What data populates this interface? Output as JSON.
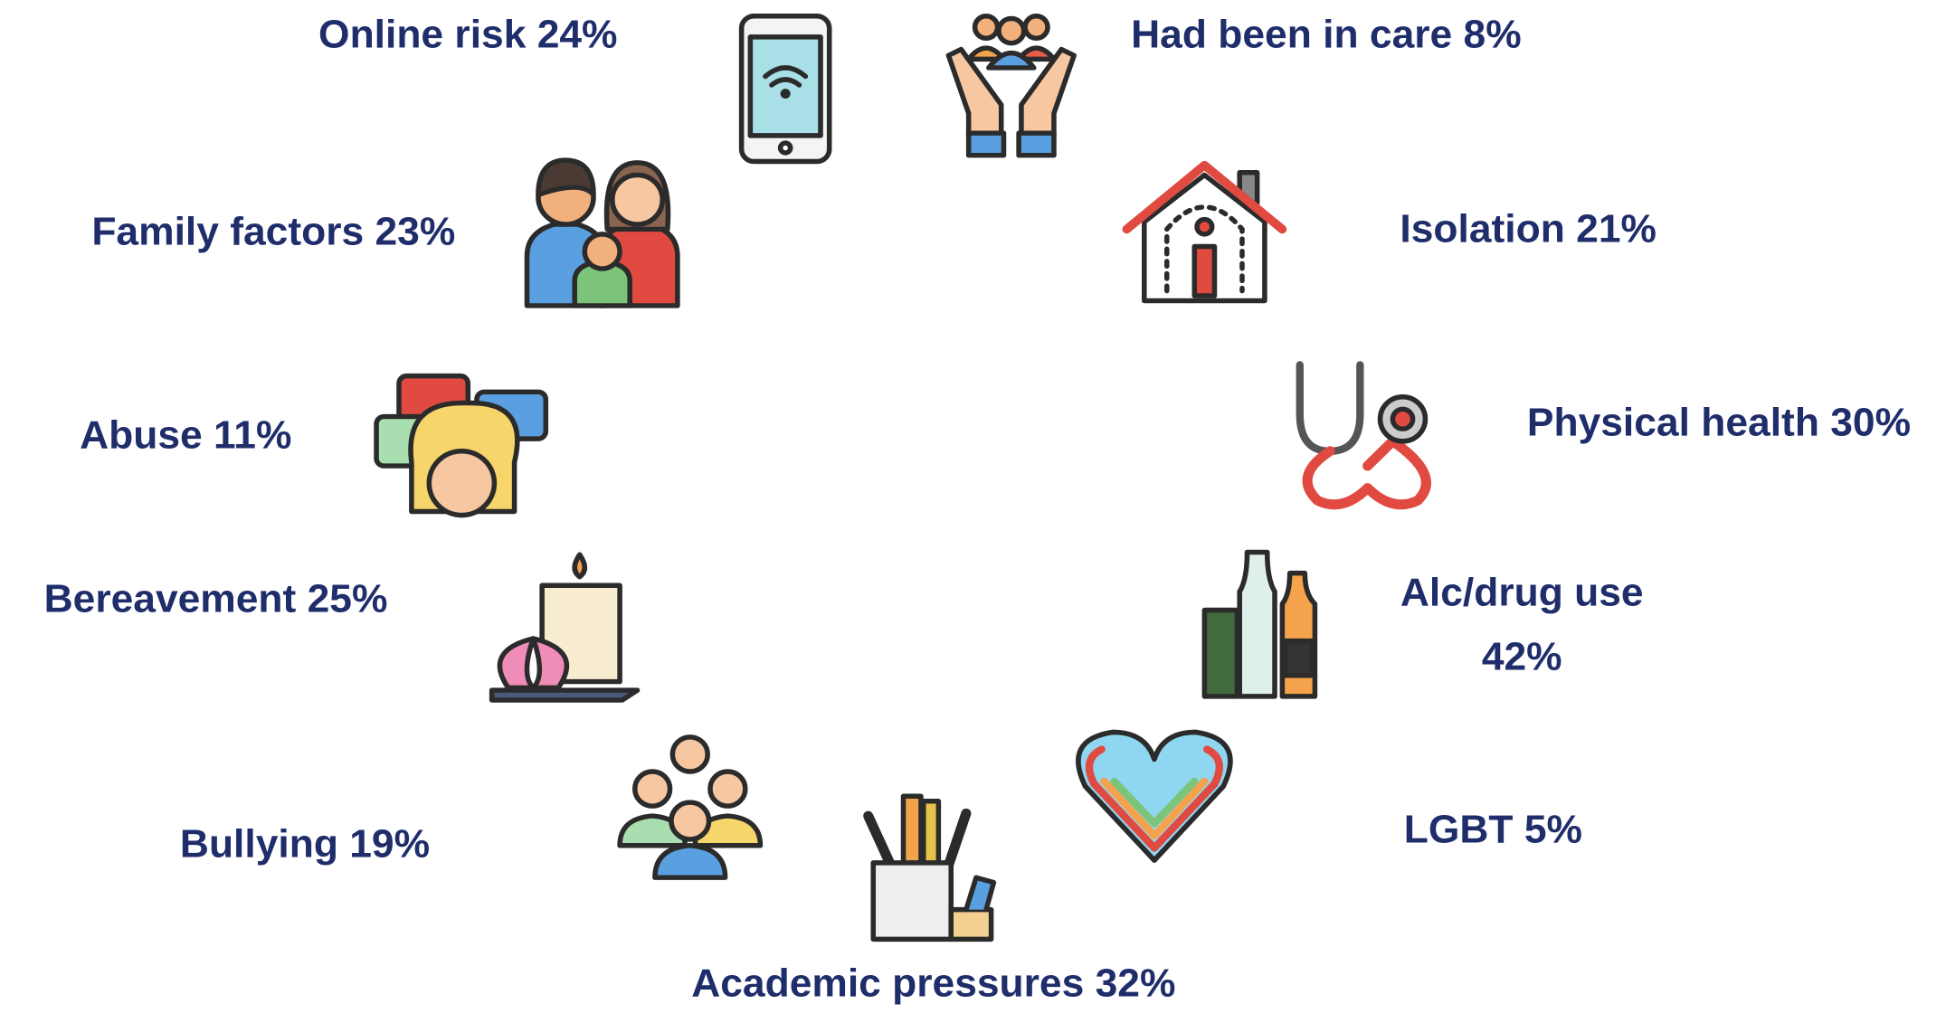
{
  "items": [
    {
      "lines": [
        "Online risk 24%"
      ]
    },
    {
      "lines": [
        "Had been in care 8%"
      ]
    },
    {
      "lines": [
        "Family factors 23%"
      ]
    },
    {
      "lines": [
        "Isolation 21%"
      ]
    },
    {
      "lines": [
        "Abuse 11%"
      ]
    },
    {
      "lines": [
        "Physical health 30%"
      ]
    },
    {
      "lines": [
        "Bereavement 25%"
      ]
    },
    {
      "lines": [
        "Alc/drug use",
        "42%"
      ]
    },
    {
      "lines": [
        "Bullying 19%"
      ]
    },
    {
      "lines": [
        "LGBT 5%"
      ]
    },
    {
      "lines": [
        "Academic pressures 32%"
      ]
    }
  ]
}
